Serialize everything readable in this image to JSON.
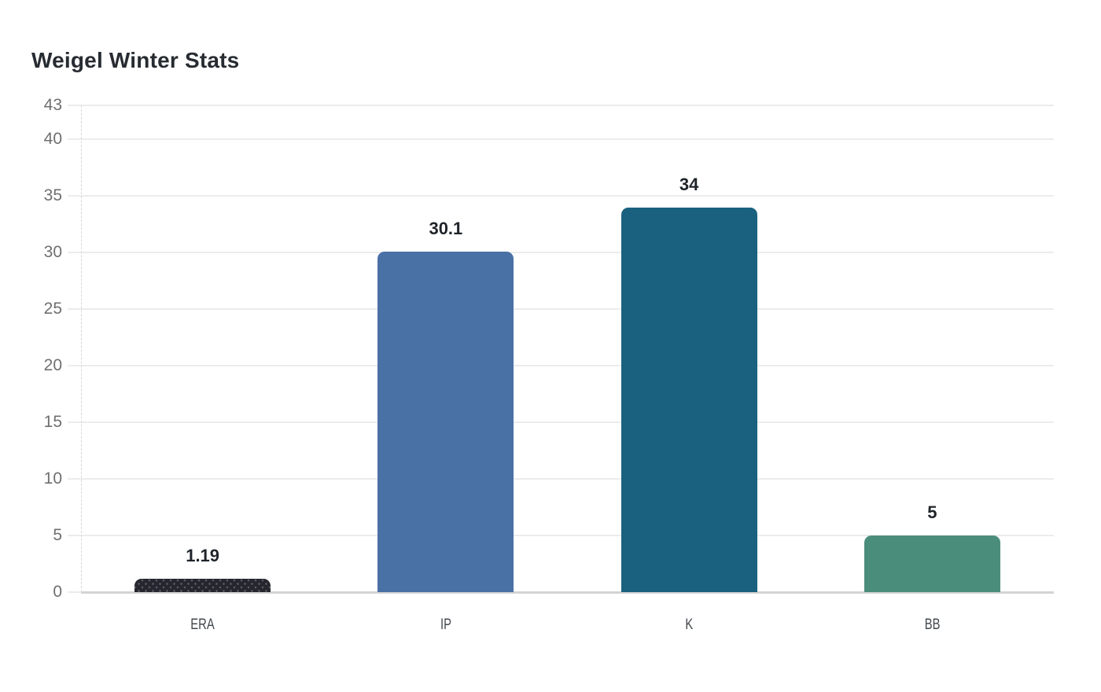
{
  "title": "Weigel Winter Stats",
  "chart_data": {
    "type": "bar",
    "title": "Weigel Winter Stats",
    "categories": [
      "ERA",
      "IP",
      "K",
      "BB"
    ],
    "values": [
      1.19,
      30.1,
      34,
      5
    ],
    "value_labels": [
      "1.19",
      "30.1",
      "34",
      "5"
    ],
    "xlabel": "",
    "ylabel": "",
    "ylim": [
      0,
      43
    ],
    "yticks": [
      0,
      5,
      10,
      15,
      20,
      25,
      30,
      35,
      40,
      43
    ],
    "grid": true,
    "legend": false,
    "background": "#ffffff",
    "bar_colors": [
      "#26262e",
      "#4a71a6",
      "#19617f",
      "#4b8d7b"
    ],
    "bar_patterns": [
      "dots",
      "solid",
      "solid",
      "solid"
    ],
    "gridline_color": "#ececec",
    "baseline_color": "#d4d4d4",
    "title_color": "#272c32",
    "tick_label_color": "#6f6f6f",
    "category_label_color": "#43484d",
    "value_label_color": "#1f242a"
  }
}
